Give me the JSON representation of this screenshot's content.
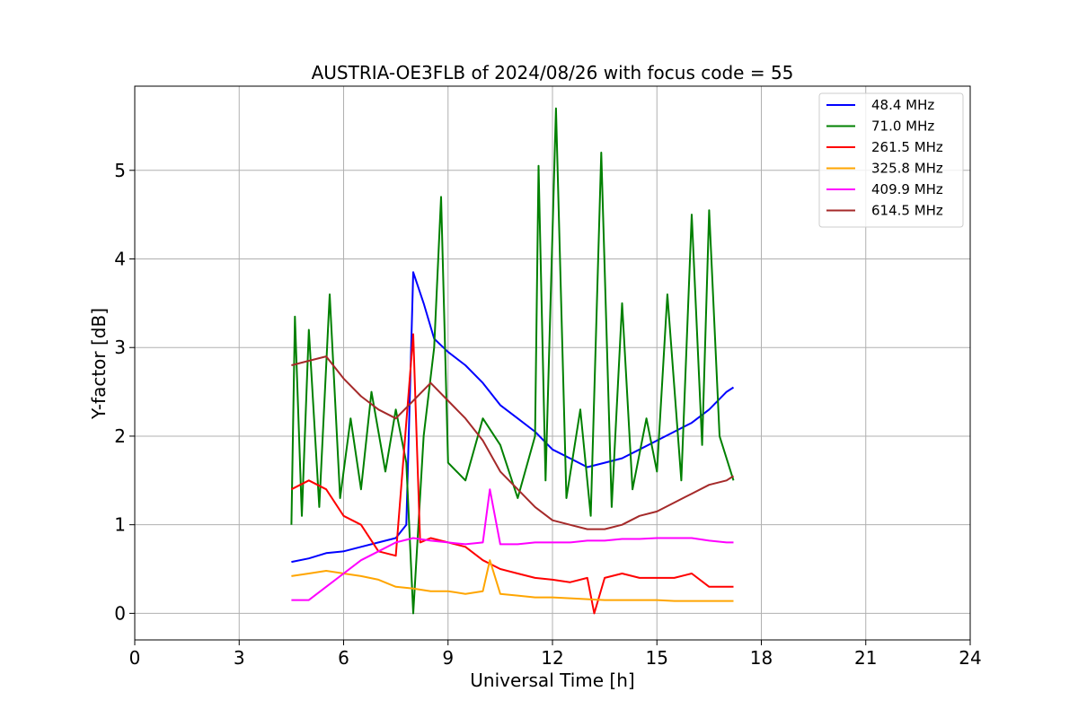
{
  "chart_data": {
    "type": "line",
    "title": "AUSTRIA-OE3FLB of 2024/08/26 with focus code = 55",
    "xlabel": "Universal Time [h]",
    "ylabel": "Y-factor [dB]",
    "xlim": [
      0,
      24
    ],
    "ylim": [
      -0.3,
      5.95
    ],
    "xticks": [
      0,
      3,
      6,
      9,
      12,
      15,
      18,
      21,
      24
    ],
    "yticks": [
      0,
      1,
      2,
      3,
      4,
      5
    ],
    "grid": true,
    "legend_position": "top-right",
    "series": [
      {
        "name": " 48.4 MHz",
        "color": "#0000ff",
        "points": [
          [
            4.5,
            0.58
          ],
          [
            5.0,
            0.62
          ],
          [
            5.5,
            0.68
          ],
          [
            6.0,
            0.7
          ],
          [
            6.5,
            0.75
          ],
          [
            7.0,
            0.8
          ],
          [
            7.5,
            0.85
          ],
          [
            7.8,
            1.0
          ],
          [
            8.0,
            3.85
          ],
          [
            8.3,
            3.5
          ],
          [
            8.6,
            3.1
          ],
          [
            9.0,
            2.95
          ],
          [
            9.5,
            2.8
          ],
          [
            10.0,
            2.6
          ],
          [
            10.5,
            2.35
          ],
          [
            11.0,
            2.2
          ],
          [
            11.5,
            2.05
          ],
          [
            12.0,
            1.85
          ],
          [
            12.5,
            1.75
          ],
          [
            13.0,
            1.65
          ],
          [
            13.5,
            1.7
          ],
          [
            14.0,
            1.75
          ],
          [
            14.5,
            1.85
          ],
          [
            15.0,
            1.95
          ],
          [
            15.5,
            2.05
          ],
          [
            16.0,
            2.15
          ],
          [
            16.5,
            2.3
          ],
          [
            17.0,
            2.5
          ],
          [
            17.2,
            2.55
          ]
        ]
      },
      {
        "name": " 71.0 MHz",
        "color": "#008000",
        "points": [
          [
            4.5,
            1.0
          ],
          [
            4.6,
            3.35
          ],
          [
            4.8,
            1.1
          ],
          [
            5.0,
            3.2
          ],
          [
            5.3,
            1.2
          ],
          [
            5.6,
            3.6
          ],
          [
            5.9,
            1.3
          ],
          [
            6.2,
            2.2
          ],
          [
            6.5,
            1.4
          ],
          [
            6.8,
            2.5
          ],
          [
            7.2,
            1.6
          ],
          [
            7.5,
            2.3
          ],
          [
            7.8,
            1.7
          ],
          [
            8.0,
            0.0
          ],
          [
            8.3,
            2.0
          ],
          [
            8.6,
            3.0
          ],
          [
            8.8,
            4.7
          ],
          [
            9.0,
            1.7
          ],
          [
            9.5,
            1.5
          ],
          [
            10.0,
            2.2
          ],
          [
            10.5,
            1.9
          ],
          [
            11.0,
            1.3
          ],
          [
            11.5,
            2.0
          ],
          [
            11.6,
            5.05
          ],
          [
            11.8,
            1.5
          ],
          [
            12.1,
            5.7
          ],
          [
            12.4,
            1.3
          ],
          [
            12.8,
            2.3
          ],
          [
            13.1,
            1.1
          ],
          [
            13.4,
            5.2
          ],
          [
            13.7,
            1.2
          ],
          [
            14.0,
            3.5
          ],
          [
            14.3,
            1.4
          ],
          [
            14.7,
            2.2
          ],
          [
            15.0,
            1.6
          ],
          [
            15.3,
            3.6
          ],
          [
            15.7,
            1.5
          ],
          [
            16.0,
            4.5
          ],
          [
            16.3,
            1.9
          ],
          [
            16.5,
            4.55
          ],
          [
            16.8,
            2.0
          ],
          [
            17.2,
            1.5
          ]
        ]
      },
      {
        "name": "261.5 MHz",
        "color": "#ff0000",
        "points": [
          [
            4.5,
            1.4
          ],
          [
            5.0,
            1.5
          ],
          [
            5.5,
            1.4
          ],
          [
            6.0,
            1.1
          ],
          [
            6.5,
            1.0
          ],
          [
            7.0,
            0.7
          ],
          [
            7.5,
            0.65
          ],
          [
            8.0,
            3.15
          ],
          [
            8.2,
            0.8
          ],
          [
            8.5,
            0.85
          ],
          [
            9.0,
            0.8
          ],
          [
            9.5,
            0.75
          ],
          [
            10.0,
            0.6
          ],
          [
            10.5,
            0.5
          ],
          [
            11.0,
            0.45
          ],
          [
            11.5,
            0.4
          ],
          [
            12.0,
            0.38
          ],
          [
            12.5,
            0.35
          ],
          [
            13.0,
            0.4
          ],
          [
            13.2,
            0.0
          ],
          [
            13.5,
            0.4
          ],
          [
            14.0,
            0.45
          ],
          [
            14.5,
            0.4
          ],
          [
            15.0,
            0.4
          ],
          [
            15.5,
            0.4
          ],
          [
            16.0,
            0.45
          ],
          [
            16.5,
            0.3
          ],
          [
            17.0,
            0.3
          ],
          [
            17.2,
            0.3
          ]
        ]
      },
      {
        "name": "325.8 MHz",
        "color": "#ffa500",
        "points": [
          [
            4.5,
            0.42
          ],
          [
            5.0,
            0.45
          ],
          [
            5.5,
            0.48
          ],
          [
            6.0,
            0.45
          ],
          [
            6.5,
            0.42
          ],
          [
            7.0,
            0.38
          ],
          [
            7.5,
            0.3
          ],
          [
            8.0,
            0.28
          ],
          [
            8.5,
            0.25
          ],
          [
            9.0,
            0.25
          ],
          [
            9.5,
            0.22
          ],
          [
            10.0,
            0.25
          ],
          [
            10.2,
            0.6
          ],
          [
            10.5,
            0.22
          ],
          [
            11.0,
            0.2
          ],
          [
            11.5,
            0.18
          ],
          [
            12.0,
            0.18
          ],
          [
            12.5,
            0.17
          ],
          [
            13.0,
            0.16
          ],
          [
            13.5,
            0.15
          ],
          [
            14.0,
            0.15
          ],
          [
            14.5,
            0.15
          ],
          [
            15.0,
            0.15
          ],
          [
            15.5,
            0.14
          ],
          [
            16.0,
            0.14
          ],
          [
            16.5,
            0.14
          ],
          [
            17.0,
            0.14
          ],
          [
            17.2,
            0.14
          ]
        ]
      },
      {
        "name": "409.9 MHz",
        "color": "#ff00ff",
        "points": [
          [
            4.5,
            0.15
          ],
          [
            5.0,
            0.15
          ],
          [
            5.5,
            0.3
          ],
          [
            6.0,
            0.45
          ],
          [
            6.5,
            0.6
          ],
          [
            7.0,
            0.7
          ],
          [
            7.5,
            0.8
          ],
          [
            8.0,
            0.85
          ],
          [
            8.5,
            0.82
          ],
          [
            9.0,
            0.8
          ],
          [
            9.5,
            0.78
          ],
          [
            10.0,
            0.8
          ],
          [
            10.2,
            1.4
          ],
          [
            10.5,
            0.78
          ],
          [
            11.0,
            0.78
          ],
          [
            11.5,
            0.8
          ],
          [
            12.0,
            0.8
          ],
          [
            12.5,
            0.8
          ],
          [
            13.0,
            0.82
          ],
          [
            13.5,
            0.82
          ],
          [
            14.0,
            0.84
          ],
          [
            14.5,
            0.84
          ],
          [
            15.0,
            0.85
          ],
          [
            15.5,
            0.85
          ],
          [
            16.0,
            0.85
          ],
          [
            16.5,
            0.82
          ],
          [
            17.0,
            0.8
          ],
          [
            17.2,
            0.8
          ]
        ]
      },
      {
        "name": "614.5 MHz",
        "color": "#a52a2a",
        "points": [
          [
            4.5,
            2.8
          ],
          [
            5.0,
            2.85
          ],
          [
            5.5,
            2.9
          ],
          [
            6.0,
            2.65
          ],
          [
            6.5,
            2.45
          ],
          [
            7.0,
            2.3
          ],
          [
            7.5,
            2.2
          ],
          [
            8.0,
            2.4
          ],
          [
            8.5,
            2.6
          ],
          [
            9.0,
            2.4
          ],
          [
            9.5,
            2.2
          ],
          [
            10.0,
            1.95
          ],
          [
            10.5,
            1.6
          ],
          [
            11.0,
            1.4
          ],
          [
            11.5,
            1.2
          ],
          [
            12.0,
            1.05
          ],
          [
            12.5,
            1.0
          ],
          [
            13.0,
            0.95
          ],
          [
            13.5,
            0.95
          ],
          [
            14.0,
            1.0
          ],
          [
            14.5,
            1.1
          ],
          [
            15.0,
            1.15
          ],
          [
            15.5,
            1.25
          ],
          [
            16.0,
            1.35
          ],
          [
            16.5,
            1.45
          ],
          [
            17.0,
            1.5
          ],
          [
            17.2,
            1.55
          ]
        ]
      }
    ]
  }
}
